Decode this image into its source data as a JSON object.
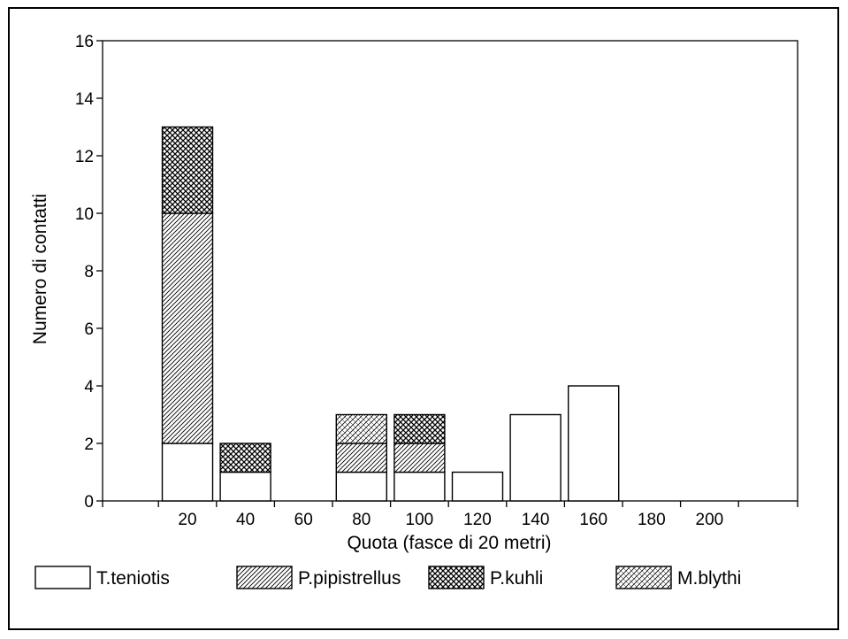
{
  "chart_data": {
    "type": "bar",
    "stacked": true,
    "title": "",
    "xlabel": "Quota (fasce di 20 metri)",
    "ylabel": "Numero di contatti",
    "ylim": [
      0,
      16
    ],
    "yticks": [
      0,
      2,
      4,
      6,
      8,
      10,
      12,
      14,
      16
    ],
    "grid": false,
    "legend_position": "bottom",
    "categories": [
      "20",
      "40",
      "60",
      "80",
      "100",
      "120",
      "140",
      "160",
      "180",
      "200"
    ],
    "series": [
      {
        "name": "T.teniotis",
        "pattern": "blank",
        "values": [
          2,
          1,
          0,
          1,
          1,
          1,
          3,
          4,
          0,
          0
        ]
      },
      {
        "name": "P.pipistrellus",
        "pattern": "diagonal",
        "values": [
          8,
          0,
          0,
          1,
          1,
          0,
          0,
          0,
          0,
          0
        ]
      },
      {
        "name": "P.kuhli",
        "pattern": "crosshatch",
        "values": [
          3,
          1,
          0,
          0,
          1,
          0,
          0,
          0,
          0,
          0
        ]
      },
      {
        "name": "M.blythi",
        "pattern": "dotted",
        "values": [
          0,
          0,
          0,
          1,
          0,
          0,
          0,
          0,
          0,
          0
        ]
      }
    ]
  },
  "colors": {
    "ink": "#000000",
    "fill": "#ffffff"
  }
}
